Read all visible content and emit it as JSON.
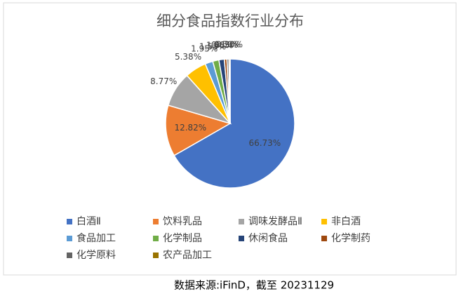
{
  "chart_data": {
    "type": "pie",
    "title": "细分食品指数行业分布",
    "categories": [
      "白酒Ⅱ",
      "饮料乳品",
      "调味发酵品Ⅱ",
      "非白酒",
      "食品加工",
      "化学制品",
      "休闲食品",
      "化学制药",
      "化学原料",
      "农产品加工"
    ],
    "values": [
      66.73,
      12.82,
      8.77,
      5.38,
      1.95,
      1.55,
      1.35,
      0.65,
      0.5,
      0.3
    ],
    "value_labels": [
      "66.73%",
      "12.82%",
      "8.77%",
      "5.38%",
      "1.95%",
      "1.55%",
      "1.35%",
      "0.65%",
      "0.50%",
      "0.30%"
    ],
    "colors": [
      "#4472c4",
      "#ed7d31",
      "#a5a5a5",
      "#ffc000",
      "#5b9bd5",
      "#70ad47",
      "#264478",
      "#9e480e",
      "#636363",
      "#997300"
    ],
    "legend": "bottom",
    "source": "数据来源:iFinD，截至 20231129"
  }
}
